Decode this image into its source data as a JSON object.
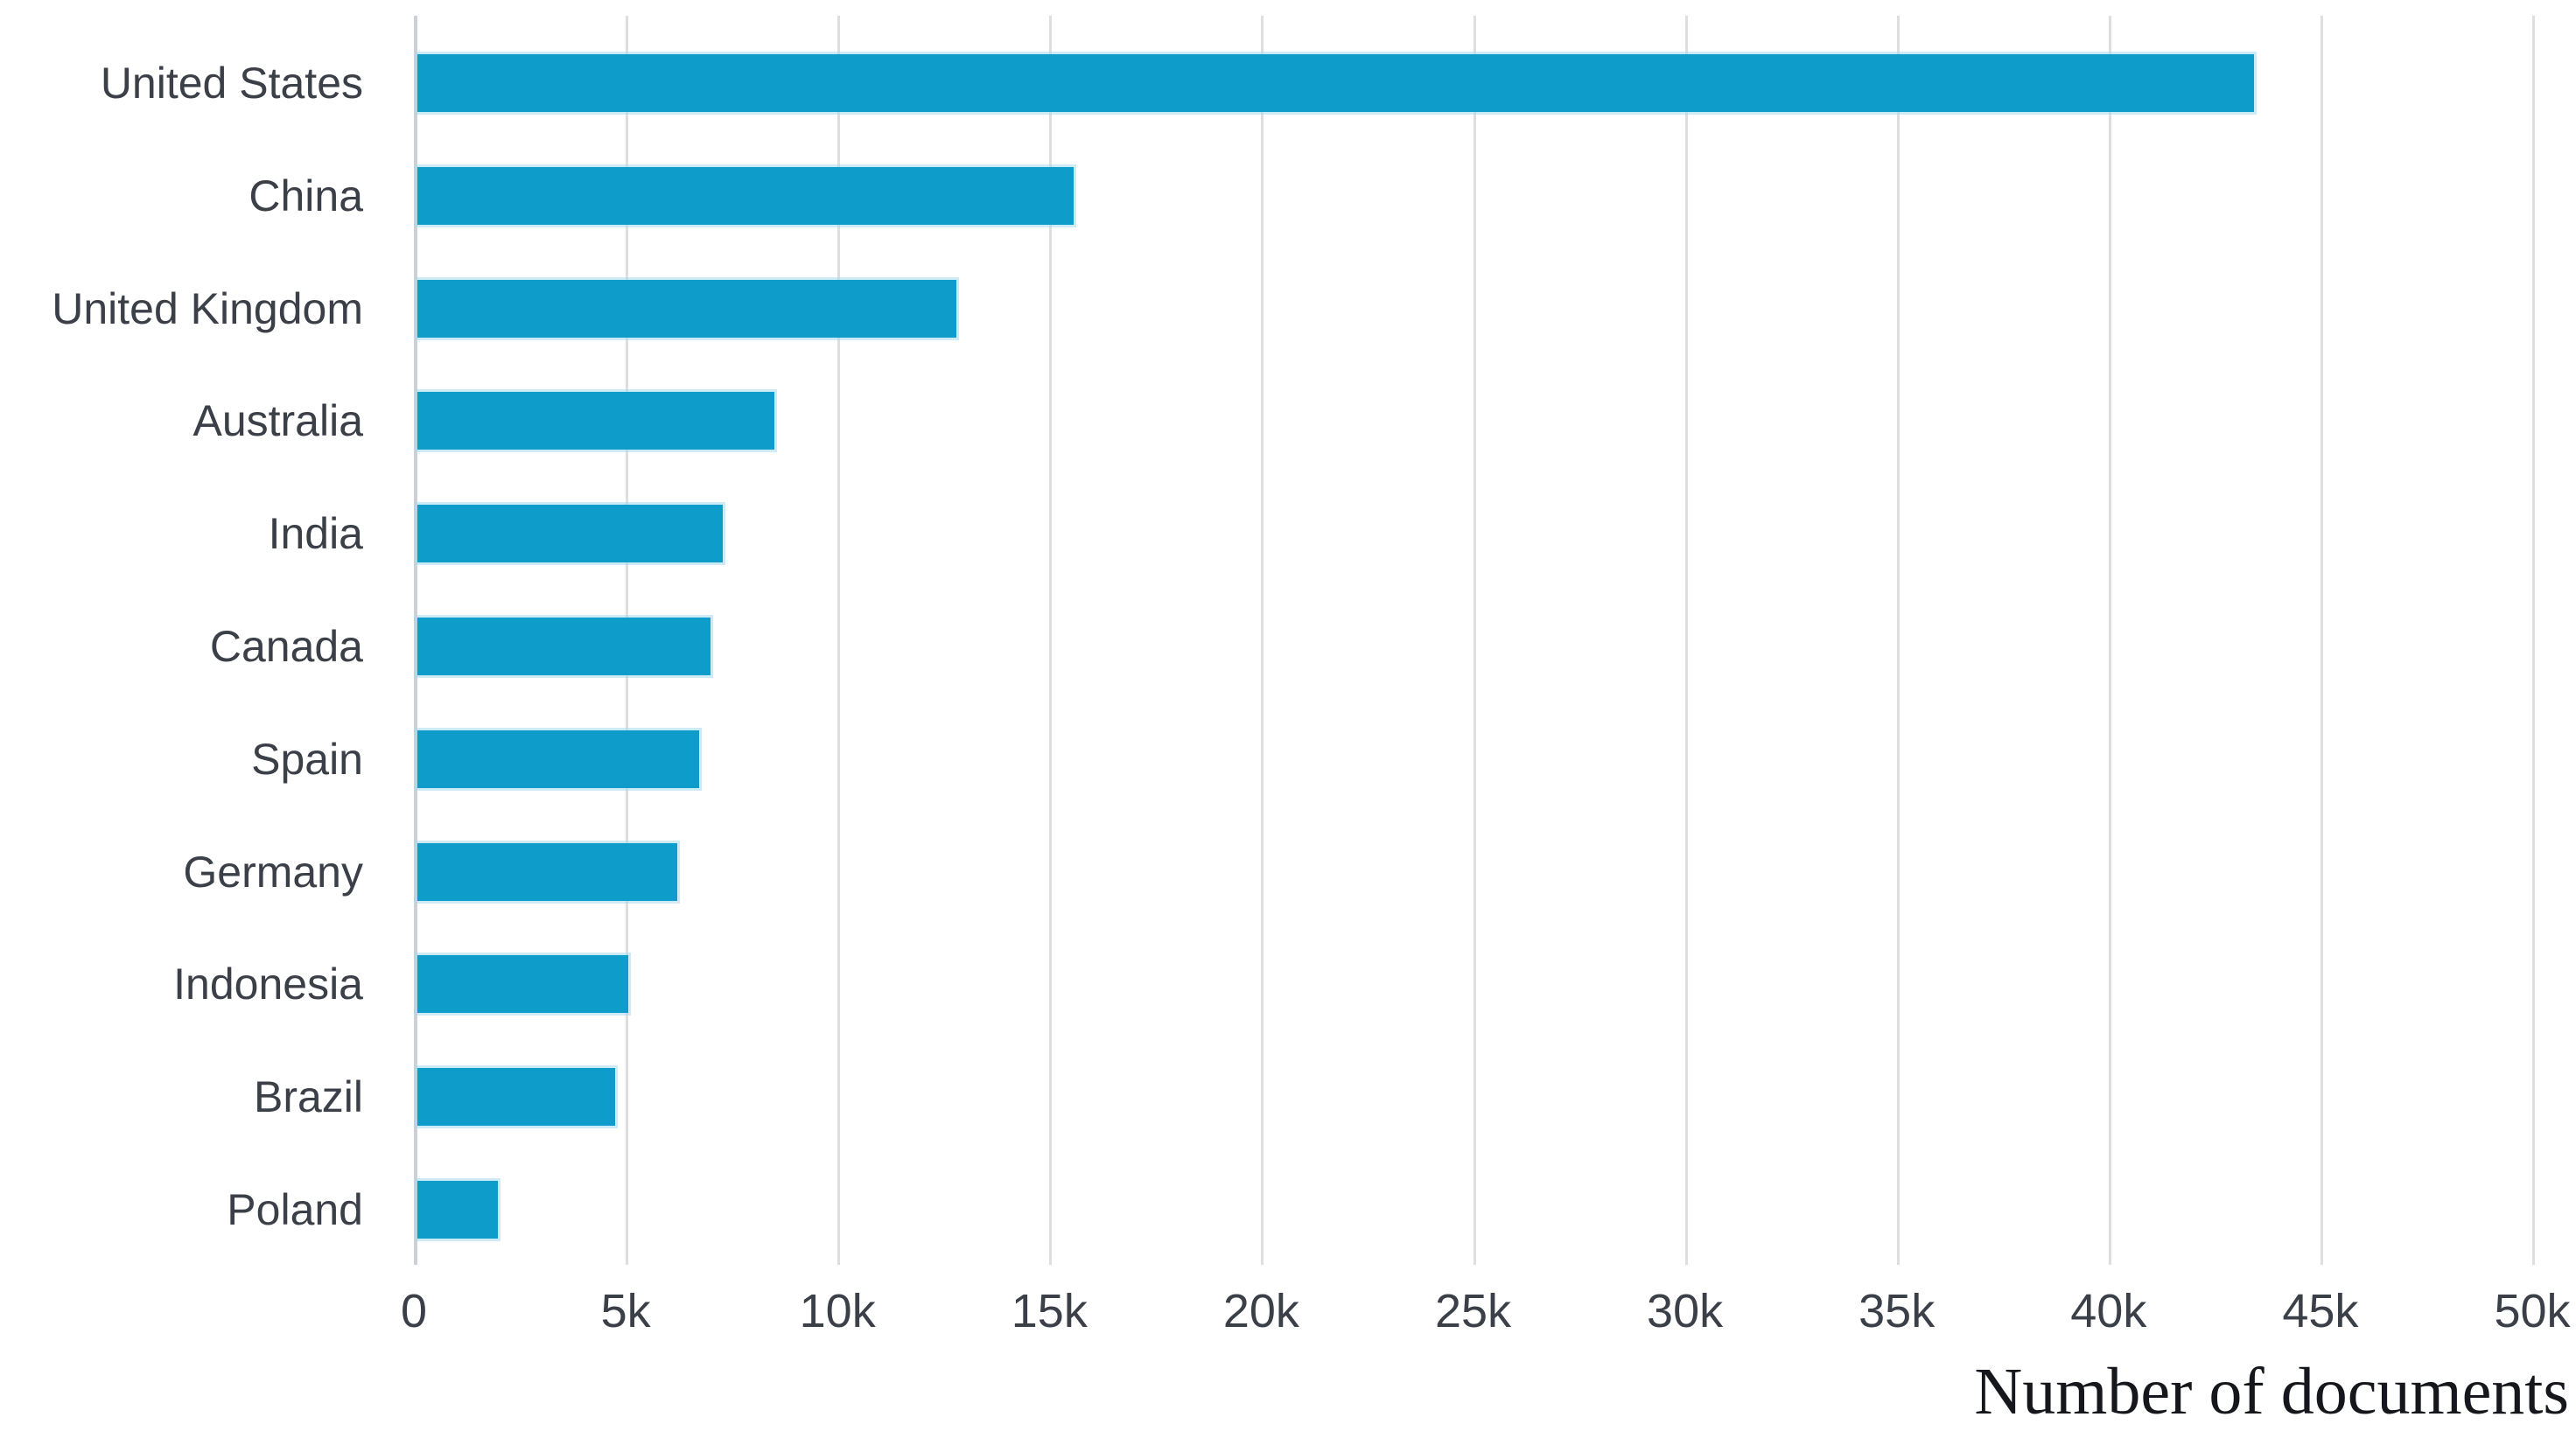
{
  "chart_data": {
    "type": "bar",
    "orientation": "horizontal",
    "title": "",
    "xlabel": "Number of documents",
    "ylabel": "",
    "categories": [
      "United States",
      "China",
      "United Kingdom",
      "Australia",
      "India",
      "Canada",
      "Spain",
      "Germany",
      "Indonesia",
      "Brazil",
      "Poland"
    ],
    "values": [
      43350,
      15490,
      12720,
      8430,
      7210,
      6920,
      6650,
      6130,
      4980,
      4670,
      1900
    ],
    "xlim": [
      0,
      50000
    ],
    "x_ticks": [
      {
        "label": "0",
        "value": 0
      },
      {
        "label": "5k",
        "value": 5000
      },
      {
        "label": "10k",
        "value": 10000
      },
      {
        "label": "15k",
        "value": 15000
      },
      {
        "label": "20k",
        "value": 20000
      },
      {
        "label": "25k",
        "value": 25000
      },
      {
        "label": "30k",
        "value": 30000
      },
      {
        "label": "35k",
        "value": 35000
      },
      {
        "label": "40k",
        "value": 40000
      },
      {
        "label": "45k",
        "value": 45000
      },
      {
        "label": "50k",
        "value": 50000
      }
    ],
    "grid": true,
    "legend": null,
    "bar_color": "#0e9cca",
    "gridline_color": "#dedede",
    "label_color": "#3b3f48"
  }
}
